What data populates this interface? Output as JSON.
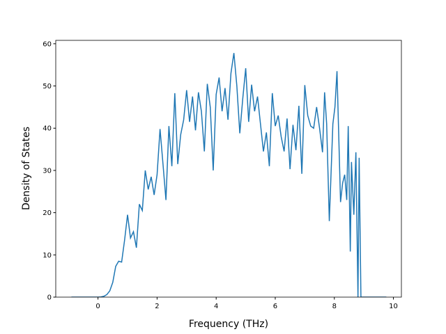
{
  "chart_data": {
    "type": "line",
    "x_label": "Frequency (THz)",
    "y_label": "Density of States",
    "x": [
      -0.9,
      -0.8,
      -0.7,
      -0.6,
      -0.5,
      -0.4,
      -0.3,
      -0.2,
      -0.1,
      0.0,
      0.1,
      0.2,
      0.3,
      0.4,
      0.5,
      0.6,
      0.7,
      0.8,
      0.9,
      1.0,
      1.1,
      1.2,
      1.3,
      1.4,
      1.5,
      1.6,
      1.7,
      1.8,
      1.9,
      2.0,
      2.1,
      2.2,
      2.3,
      2.4,
      2.5,
      2.6,
      2.7,
      2.8,
      2.9,
      3.0,
      3.1,
      3.2,
      3.3,
      3.4,
      3.5,
      3.6,
      3.7,
      3.8,
      3.9,
      4.0,
      4.1,
      4.2,
      4.3,
      4.4,
      4.5,
      4.6,
      4.7,
      4.8,
      4.9,
      5.0,
      5.1,
      5.2,
      5.3,
      5.4,
      5.5,
      5.6,
      5.7,
      5.8,
      5.9,
      6.0,
      6.1,
      6.2,
      6.3,
      6.4,
      6.5,
      6.6,
      6.7,
      6.8,
      6.9,
      7.0,
      7.1,
      7.2,
      7.3,
      7.4,
      7.5,
      7.6,
      7.67,
      7.74,
      7.83,
      7.95,
      8.02,
      8.09,
      8.21,
      8.28,
      8.35,
      8.42,
      8.47,
      8.54,
      8.58,
      8.66,
      8.73,
      8.8,
      8.84,
      8.9,
      9.2,
      9.5,
      9.76
    ],
    "series": [
      {
        "color": "#1f77b4",
        "values": [
          0,
          0,
          0,
          0,
          0,
          0,
          0,
          0,
          0,
          0,
          0.05,
          0.2,
          0.6,
          1.5,
          3.5,
          7.3,
          8.5,
          8.3,
          13.5,
          19.5,
          14,
          15.5,
          11.7,
          22,
          20.5,
          30,
          25.5,
          28.5,
          24.2,
          29,
          39.8,
          31.5,
          23,
          40.5,
          31,
          48.3,
          31.5,
          38.5,
          42,
          49,
          41.5,
          47.5,
          39.5,
          48.5,
          44,
          34.5,
          50.5,
          45,
          30,
          48,
          52,
          44,
          49.5,
          42,
          53,
          57.8,
          50,
          38.8,
          47,
          54.2,
          41.5,
          50.3,
          44,
          47.5,
          41,
          34.5,
          39,
          31,
          48.3,
          40.5,
          43,
          38,
          34.5,
          42.3,
          30.3,
          40.8,
          34.8,
          45.3,
          29.2,
          50.2,
          43,
          40.5,
          40,
          45,
          40,
          34.3,
          48.5,
          41,
          18,
          41,
          45,
          53.5,
          22.5,
          27,
          29,
          23,
          40.5,
          10.8,
          32,
          19.5,
          34.3,
          0,
          33,
          0,
          0,
          0,
          0
        ]
      }
    ],
    "xlim": [
      -1.43,
      10.27
    ],
    "xticks": [
      0,
      2,
      4,
      6,
      8,
      10
    ],
    "ylim": [
      0,
      60.8
    ],
    "yticks": [
      0,
      10,
      20,
      30,
      40,
      50,
      60
    ]
  }
}
